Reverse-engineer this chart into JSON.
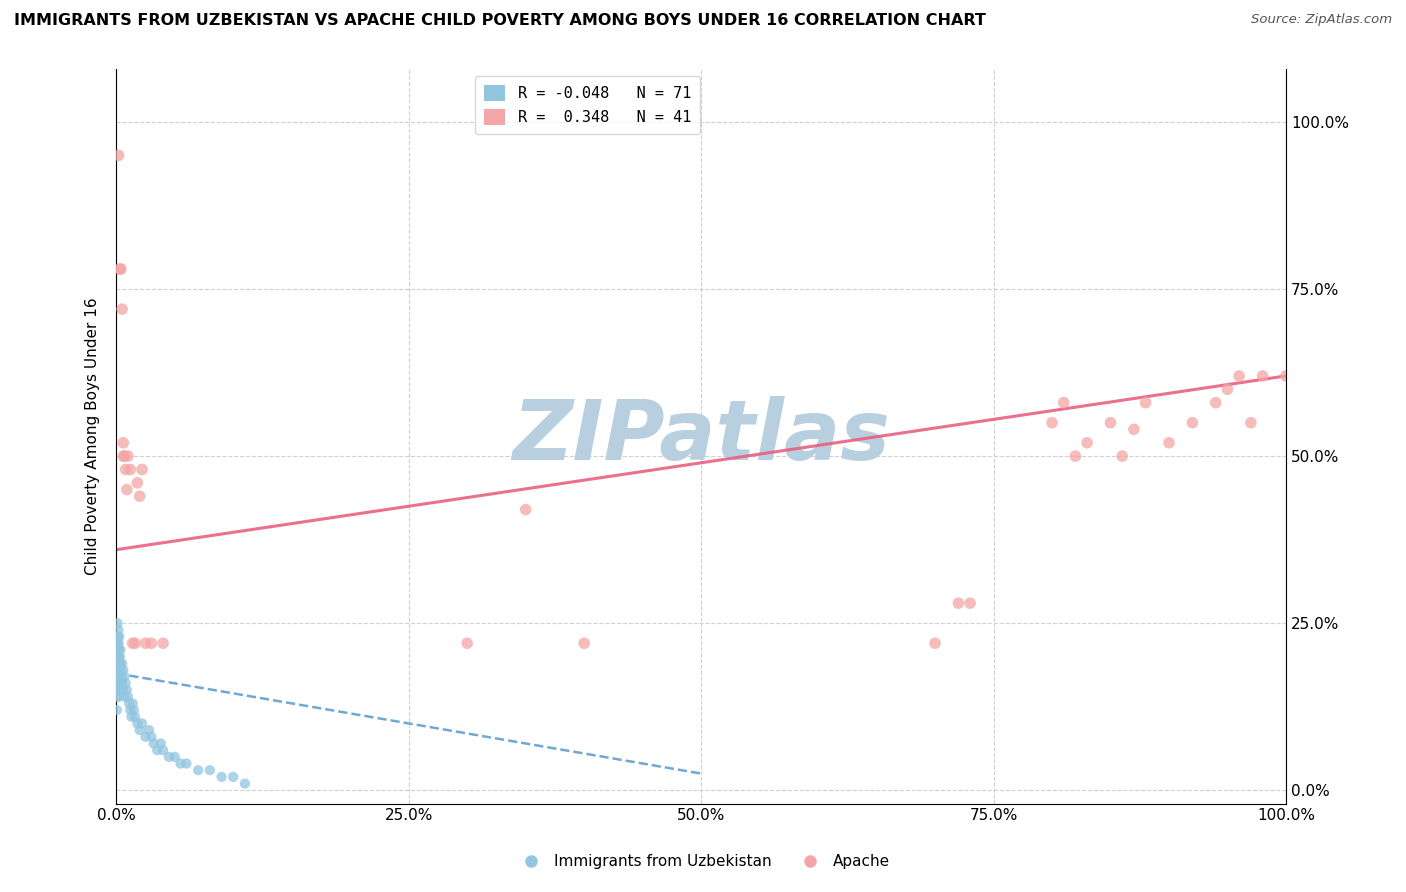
{
  "title": "IMMIGRANTS FROM UZBEKISTAN VS APACHE CHILD POVERTY AMONG BOYS UNDER 16 CORRELATION CHART",
  "source": "Source: ZipAtlas.com",
  "ylabel": "Child Poverty Among Boys Under 16",
  "xlim": [
    0,
    1.0
  ],
  "ylim": [
    -0.02,
    1.08
  ],
  "xticks": [
    0.0,
    0.25,
    0.5,
    0.75,
    1.0
  ],
  "xticklabels": [
    "0.0%",
    "25.0%",
    "50.0%",
    "75.0%",
    "100.0%"
  ],
  "yticks": [
    0.0,
    0.25,
    0.5,
    0.75,
    1.0
  ],
  "yticklabels": [
    "0.0%",
    "25.0%",
    "50.0%",
    "75.0%",
    "100.0%"
  ],
  "legend_r1": "R = -0.048",
  "legend_n1": "N = 71",
  "legend_r2": "R =  0.348",
  "legend_n2": "N = 41",
  "blue_color": "#92c5de",
  "pink_color": "#f4a5a5",
  "blue_line_color": "#5599cc",
  "pink_line_color": "#e86080",
  "watermark": "ZIPatlas",
  "watermark_color": "#b8cfe0",
  "blue_scatter_x": [
    0.0003,
    0.0004,
    0.0005,
    0.0005,
    0.0006,
    0.0007,
    0.0008,
    0.0009,
    0.001,
    0.001,
    0.001,
    0.0012,
    0.0013,
    0.0014,
    0.0015,
    0.0015,
    0.0016,
    0.0017,
    0.0018,
    0.0019,
    0.002,
    0.002,
    0.0021,
    0.0022,
    0.0023,
    0.0024,
    0.0025,
    0.0026,
    0.0027,
    0.003,
    0.003,
    0.0032,
    0.0034,
    0.0035,
    0.004,
    0.004,
    0.0045,
    0.005,
    0.005,
    0.006,
    0.006,
    0.007,
    0.007,
    0.008,
    0.009,
    0.01,
    0.011,
    0.012,
    0.013,
    0.014,
    0.015,
    0.016,
    0.018,
    0.02,
    0.022,
    0.025,
    0.028,
    0.03,
    0.032,
    0.035,
    0.038,
    0.04,
    0.045,
    0.05,
    0.055,
    0.06,
    0.07,
    0.08,
    0.09,
    0.1,
    0.11
  ],
  "blue_scatter_y": [
    0.18,
    0.15,
    0.22,
    0.12,
    0.16,
    0.2,
    0.14,
    0.19,
    0.25,
    0.18,
    0.22,
    0.17,
    0.21,
    0.15,
    0.23,
    0.19,
    0.16,
    0.2,
    0.24,
    0.14,
    0.22,
    0.18,
    0.17,
    0.21,
    0.19,
    0.16,
    0.2,
    0.23,
    0.15,
    0.2,
    0.17,
    0.19,
    0.16,
    0.21,
    0.18,
    0.15,
    0.17,
    0.19,
    0.16,
    0.18,
    0.15,
    0.17,
    0.14,
    0.16,
    0.15,
    0.14,
    0.13,
    0.12,
    0.11,
    0.13,
    0.12,
    0.11,
    0.1,
    0.09,
    0.1,
    0.08,
    0.09,
    0.08,
    0.07,
    0.06,
    0.07,
    0.06,
    0.05,
    0.05,
    0.04,
    0.04,
    0.03,
    0.03,
    0.02,
    0.02,
    0.01
  ],
  "pink_scatter_x": [
    0.002,
    0.003,
    0.004,
    0.005,
    0.006,
    0.006,
    0.007,
    0.008,
    0.009,
    0.01,
    0.012,
    0.014,
    0.016,
    0.018,
    0.02,
    0.022,
    0.025,
    0.03,
    0.04,
    0.3,
    0.35,
    0.4,
    0.7,
    0.72,
    0.73,
    0.8,
    0.81,
    0.82,
    0.83,
    0.85,
    0.86,
    0.87,
    0.88,
    0.9,
    0.92,
    0.94,
    0.95,
    0.96,
    0.97,
    0.98,
    1.0
  ],
  "pink_scatter_y": [
    0.95,
    0.78,
    0.78,
    0.72,
    0.5,
    0.52,
    0.5,
    0.48,
    0.45,
    0.5,
    0.48,
    0.22,
    0.22,
    0.46,
    0.44,
    0.48,
    0.22,
    0.22,
    0.22,
    0.22,
    0.42,
    0.22,
    0.22,
    0.28,
    0.28,
    0.55,
    0.58,
    0.5,
    0.52,
    0.55,
    0.5,
    0.54,
    0.58,
    0.52,
    0.55,
    0.58,
    0.6,
    0.62,
    0.55,
    0.62,
    0.62
  ],
  "blue_trend_x": [
    0.0,
    0.5
  ],
  "blue_trend_y": [
    0.175,
    0.025
  ],
  "pink_trend_x": [
    0.0,
    1.0
  ],
  "pink_trend_y": [
    0.36,
    0.62
  ]
}
